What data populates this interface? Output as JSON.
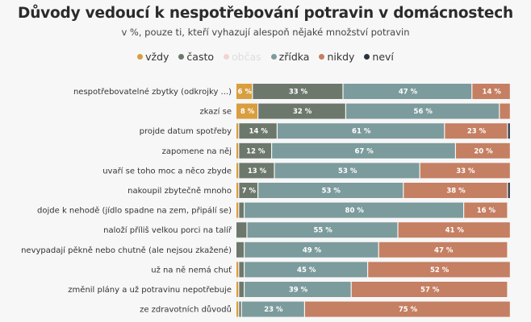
{
  "chart_data": {
    "type": "bar",
    "orientation": "horizontal",
    "stacked": true,
    "title": "Důvody vedoucí k nespotřebování potravin v domácnostech",
    "subtitle": "v %, pouze ti, kteří vyhazují alespoň nějaké množství potravin",
    "legend_position": "top",
    "xlim": [
      0,
      100
    ],
    "grid": false,
    "categories": [
      "nespotřebovatelné zbytky (odkrojky ...)",
      "zkazí se",
      "projde datum spotřeby",
      "zapomene na něj",
      "uvaří se toho moc a něco zbyde",
      "nakoupil zbytečně mnoho",
      "dojde k nehodě (jídlo spadne na zem, připálí se)",
      "naloží příliš velkou porci na talíř",
      "nevypadají pěkně nebo chutně (ale nejsou zkažené)",
      "už na ně nemá chuť",
      "změnil plány a už potravinu nepotřebuje",
      "ze zdravotních důvodů"
    ],
    "series": [
      {
        "name": "vždy",
        "color": "#d99e3e",
        "values": [
          6,
          8,
          1,
          1,
          1,
          1,
          1,
          0,
          0,
          1,
          1,
          1
        ]
      },
      {
        "name": "často",
        "color": "#6d786c",
        "values": [
          33,
          32,
          14,
          12,
          13,
          7,
          2,
          4,
          3,
          2,
          2,
          1
        ]
      },
      {
        "name": "občas",
        "color": "#f1d3d3",
        "legend_faded": true,
        "values": [
          0,
          0,
          0,
          0,
          0,
          0,
          0,
          0,
          0,
          0,
          0,
          0
        ]
      },
      {
        "name": "zřídka",
        "color": "#7c9b9d",
        "values": [
          47,
          56,
          61,
          67,
          53,
          53,
          80,
          55,
          49,
          45,
          39,
          23
        ]
      },
      {
        "name": "nikdy",
        "color": "#c57f62",
        "values": [
          14,
          4,
          23,
          20,
          33,
          38,
          16,
          41,
          47,
          52,
          57,
          75
        ]
      },
      {
        "name": "neví",
        "color": "#2b3142",
        "values": [
          0,
          0,
          1,
          0,
          0,
          1,
          0,
          0,
          0,
          0,
          0,
          0
        ]
      }
    ],
    "value_suffix": " %"
  }
}
